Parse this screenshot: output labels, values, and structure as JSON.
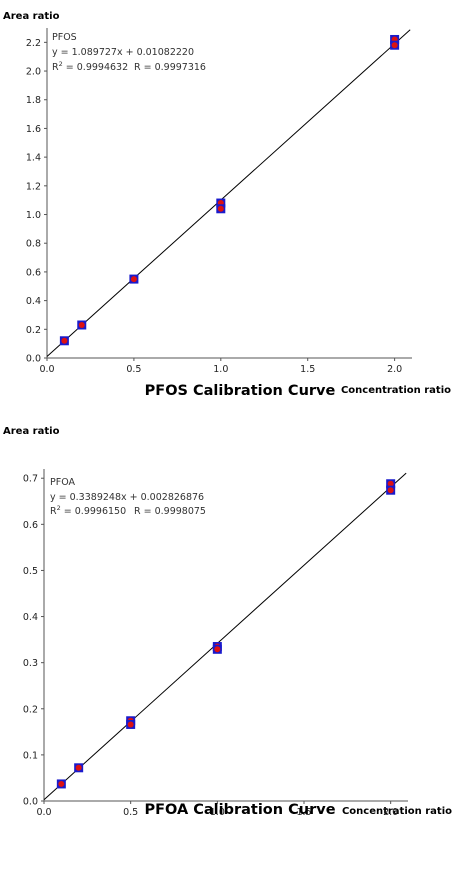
{
  "chart_data": [
    {
      "type": "scatter",
      "title": "PFOS Calibration Curve",
      "ylabel": "Area ratio",
      "xlabel": "Concentration ratio",
      "xlim": [
        0,
        2.1
      ],
      "ylim": [
        0,
        2.3
      ],
      "xticks": [
        "0.0",
        "0.5",
        "1.0",
        "1.5",
        "2.0"
      ],
      "yticks": [
        "0.0",
        "0.2",
        "0.4",
        "0.6",
        "0.8",
        "1.0",
        "1.2",
        "1.4",
        "1.6",
        "1.8",
        "2.0",
        "2.2"
      ],
      "annotation": {
        "name": "PFOS",
        "equation": "y = 1.089727x + 0.01082220",
        "r2_label": "R",
        "r2_sup": "2",
        "r2_value": " = 0.9994632",
        "r_text": "R = 0.9997316"
      },
      "fit": {
        "slope": 1.089727,
        "intercept": 0.0108222
      },
      "points": [
        {
          "x": 0.1,
          "y": 0.12
        },
        {
          "x": 0.2,
          "y": 0.23
        },
        {
          "x": 0.5,
          "y": 0.55
        },
        {
          "x": 1.0,
          "y": 1.08
        },
        {
          "x": 1.0,
          "y": 1.04
        },
        {
          "x": 2.0,
          "y": 2.22
        },
        {
          "x": 2.0,
          "y": 2.18
        }
      ],
      "colors": {
        "marker": "#1a1acc",
        "marker_center": "#dd1111",
        "line": "#000000"
      }
    },
    {
      "type": "scatter",
      "title": "PFOA Calibration Curve",
      "ylabel": "Area ratio",
      "xlabel": "Concentration ratio",
      "xlim": [
        0,
        2.1
      ],
      "ylim": [
        0,
        0.72
      ],
      "xticks": [
        "0.0",
        "0.5",
        "1.0",
        "1.5",
        "2.0"
      ],
      "yticks": [
        "0.0",
        "0.1",
        "0.2",
        "0.3",
        "0.4",
        "0.5",
        "0.6",
        "0.7"
      ],
      "annotation": {
        "name": "PFOA",
        "equation": "y = 0.3389248x + 0.002826876",
        "r2_label": "R",
        "r2_sup": "2",
        "r2_value": " = 0.9996150",
        "r_text": "R = 0.9998075"
      },
      "fit": {
        "slope": 0.3389248,
        "intercept": 0.002826876
      },
      "points": [
        {
          "x": 0.1,
          "y": 0.037
        },
        {
          "x": 0.2,
          "y": 0.072
        },
        {
          "x": 0.5,
          "y": 0.174
        },
        {
          "x": 0.5,
          "y": 0.166
        },
        {
          "x": 1.0,
          "y": 0.335
        },
        {
          "x": 1.0,
          "y": 0.329
        },
        {
          "x": 2.0,
          "y": 0.688
        },
        {
          "x": 2.0,
          "y": 0.674
        }
      ],
      "colors": {
        "marker": "#1a1acc",
        "marker_center": "#dd1111",
        "line": "#000000"
      }
    }
  ]
}
